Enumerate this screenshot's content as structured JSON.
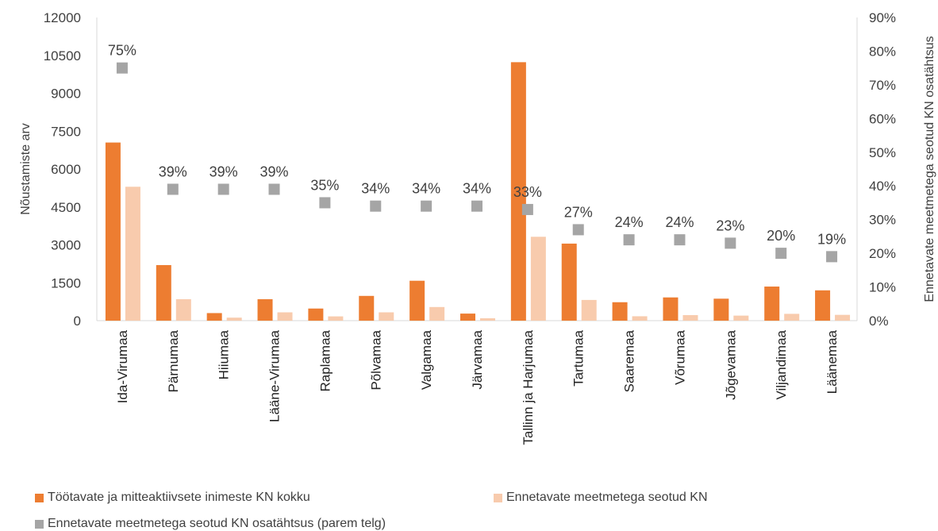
{
  "chart_data": {
    "type": "bar",
    "categories": [
      "Ida-Virumaa",
      "Pärnumaa",
      "Hiiumaa",
      "Lääne-Virumaa",
      "Raplamaa",
      "Põlvamaa",
      "Valgamaa",
      "Järvamaa",
      "Tallinn ja Harjumaa",
      "Tartumaa",
      "Saaremaa",
      "Võrumaa",
      "Jõgevamaa",
      "Viljandimaa",
      "Läänemaa"
    ],
    "series": [
      {
        "name": "Töötavate ja mitteaktiivsete inimeste KN kokku",
        "color": "#ED7D31",
        "axis": "left",
        "values": [
          7050,
          2200,
          300,
          850,
          480,
          980,
          1580,
          280,
          10230,
          3050,
          730,
          920,
          870,
          1350,
          1200
        ]
      },
      {
        "name": "Ennetavate meetmetega seotud KN",
        "color": "#F8CBAD",
        "axis": "left",
        "values": [
          5300,
          850,
          120,
          330,
          170,
          330,
          540,
          95,
          3320,
          820,
          175,
          220,
          200,
          270,
          230
        ]
      },
      {
        "name": "Ennetavate meetmetega seotud KN osatähtsus (parem telg)",
        "color": "#A5A5A5",
        "axis": "right",
        "marker": "square",
        "values": [
          0.75,
          0.39,
          0.39,
          0.39,
          0.35,
          0.34,
          0.34,
          0.34,
          0.33,
          0.27,
          0.24,
          0.24,
          0.23,
          0.2,
          0.19
        ],
        "labels": [
          "75%",
          "39%",
          "39%",
          "39%",
          "35%",
          "34%",
          "34%",
          "34%",
          "33%",
          "27%",
          "24%",
          "24%",
          "23%",
          "20%",
          "19%"
        ]
      }
    ],
    "ylabel": "Nõustamiste arv",
    "y2label": "Ennetavate meetmetega seotud KN osatähtsus",
    "ylim": [
      0,
      12000
    ],
    "y2lim": [
      0,
      0.9
    ],
    "yticks": [
      "0",
      "1500",
      "3000",
      "4500",
      "6000",
      "7500",
      "9000",
      "10500",
      "12000"
    ],
    "y2ticks": [
      "0%",
      "10%",
      "20%",
      "30%",
      "40%",
      "50%",
      "60%",
      "70%",
      "80%",
      "90%"
    ],
    "legend_position": "bottom",
    "grid": false
  }
}
